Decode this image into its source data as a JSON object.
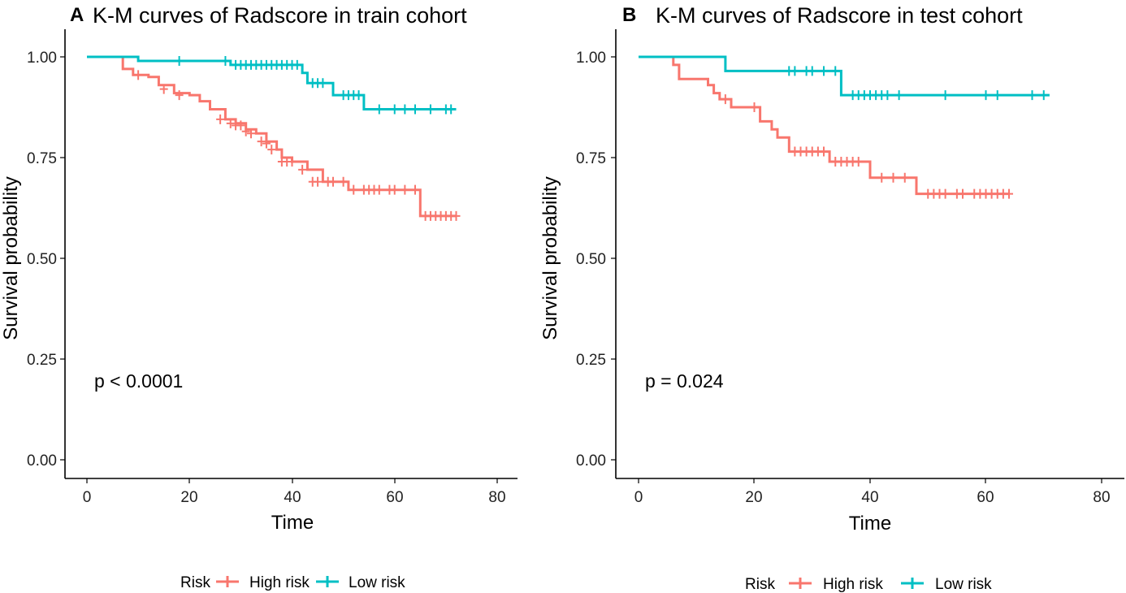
{
  "colors": {
    "high": "#F8766D",
    "low": "#00BFC4"
  },
  "chart_data": [
    {
      "type": "line",
      "panel": "A",
      "title": "K-M curves of Radscore in train cohort",
      "xlabel": "Time",
      "ylabel": "Survival probability",
      "xlim": [
        0,
        80
      ],
      "ylim": [
        0,
        1
      ],
      "xticks": [
        "0",
        "20",
        "40",
        "60",
        "80"
      ],
      "yticks": [
        "0.00",
        "0.25",
        "0.50",
        "0.75",
        "1.00"
      ],
      "p_value_text": "p < 0.0001",
      "legend_title": "Risk",
      "series": [
        {
          "name": "High risk",
          "color_key": "high",
          "steps": [
            [
              0,
              1.0
            ],
            [
              7,
              0.97
            ],
            [
              9,
              0.955
            ],
            [
              12,
              0.95
            ],
            [
              14,
              0.93
            ],
            [
              17,
              0.91
            ],
            [
              20,
              0.905
            ],
            [
              22,
              0.89
            ],
            [
              24,
              0.87
            ],
            [
              27,
              0.845
            ],
            [
              29,
              0.835
            ],
            [
              31,
              0.82
            ],
            [
              33,
              0.81
            ],
            [
              35,
              0.79
            ],
            [
              37,
              0.77
            ],
            [
              38,
              0.75
            ],
            [
              40,
              0.74
            ],
            [
              43,
              0.72
            ],
            [
              46,
              0.69
            ],
            [
              51,
              0.67
            ],
            [
              65,
              0.605
            ],
            [
              72,
              0.605
            ]
          ],
          "censors": [
            [
              10,
              0.955
            ],
            [
              15,
              0.92
            ],
            [
              18,
              0.905
            ],
            [
              26,
              0.845
            ],
            [
              28,
              0.835
            ],
            [
              29,
              0.83
            ],
            [
              30,
              0.83
            ],
            [
              31,
              0.815
            ],
            [
              32,
              0.81
            ],
            [
              34,
              0.79
            ],
            [
              35,
              0.785
            ],
            [
              36,
              0.77
            ],
            [
              38,
              0.74
            ],
            [
              39,
              0.74
            ],
            [
              40,
              0.74
            ],
            [
              42,
              0.72
            ],
            [
              44,
              0.69
            ],
            [
              45,
              0.69
            ],
            [
              47,
              0.69
            ],
            [
              48,
              0.69
            ],
            [
              50,
              0.69
            ],
            [
              52,
              0.67
            ],
            [
              54,
              0.67
            ],
            [
              55,
              0.67
            ],
            [
              56,
              0.67
            ],
            [
              57,
              0.67
            ],
            [
              59,
              0.67
            ],
            [
              60,
              0.67
            ],
            [
              62,
              0.67
            ],
            [
              64,
              0.67
            ],
            [
              66,
              0.605
            ],
            [
              67,
              0.605
            ],
            [
              68,
              0.605
            ],
            [
              69,
              0.605
            ],
            [
              70,
              0.605
            ],
            [
              71,
              0.605
            ],
            [
              72,
              0.605
            ]
          ]
        },
        {
          "name": "Low risk",
          "color_key": "low",
          "steps": [
            [
              0,
              1.0
            ],
            [
              10,
              0.99
            ],
            [
              28,
              0.98
            ],
            [
              42,
              0.96
            ],
            [
              43,
              0.935
            ],
            [
              48,
              0.905
            ],
            [
              54,
              0.87
            ],
            [
              72,
              0.87
            ]
          ],
          "censors": [
            [
              18,
              0.99
            ],
            [
              27,
              0.99
            ],
            [
              29,
              0.98
            ],
            [
              30,
              0.98
            ],
            [
              31,
              0.98
            ],
            [
              32,
              0.98
            ],
            [
              33,
              0.98
            ],
            [
              34,
              0.98
            ],
            [
              35,
              0.98
            ],
            [
              36,
              0.98
            ],
            [
              37,
              0.98
            ],
            [
              38,
              0.98
            ],
            [
              39,
              0.98
            ],
            [
              40,
              0.98
            ],
            [
              41,
              0.98
            ],
            [
              44,
              0.935
            ],
            [
              45,
              0.935
            ],
            [
              46,
              0.935
            ],
            [
              50,
              0.905
            ],
            [
              51,
              0.905
            ],
            [
              52,
              0.905
            ],
            [
              53,
              0.905
            ],
            [
              57,
              0.87
            ],
            [
              60,
              0.87
            ],
            [
              62,
              0.87
            ],
            [
              64,
              0.87
            ],
            [
              67,
              0.87
            ],
            [
              70,
              0.87
            ],
            [
              71,
              0.87
            ]
          ]
        }
      ]
    },
    {
      "type": "line",
      "panel": "B",
      "title": "K-M curves of Radscore in test cohort",
      "xlabel": "Time",
      "ylabel": "Survival probability",
      "xlim": [
        0,
        80
      ],
      "ylim": [
        0,
        1
      ],
      "xticks": [
        "0",
        "20",
        "40",
        "60",
        "80"
      ],
      "yticks": [
        "0.00",
        "0.25",
        "0.50",
        "0.75",
        "1.00"
      ],
      "p_value_text": "p = 0.024",
      "legend_title": "Risk",
      "series": [
        {
          "name": "High risk",
          "color_key": "high",
          "steps": [
            [
              0,
              1.0
            ],
            [
              6,
              0.98
            ],
            [
              7,
              0.945
            ],
            [
              12,
              0.93
            ],
            [
              13,
              0.91
            ],
            [
              14,
              0.895
            ],
            [
              16,
              0.875
            ],
            [
              21,
              0.84
            ],
            [
              23,
              0.82
            ],
            [
              24,
              0.8
            ],
            [
              26,
              0.765
            ],
            [
              33,
              0.74
            ],
            [
              40,
              0.7
            ],
            [
              48,
              0.66
            ],
            [
              64,
              0.66
            ]
          ],
          "censors": [
            [
              15,
              0.895
            ],
            [
              20,
              0.875
            ],
            [
              27,
              0.765
            ],
            [
              28,
              0.765
            ],
            [
              29,
              0.765
            ],
            [
              30,
              0.765
            ],
            [
              31,
              0.765
            ],
            [
              32,
              0.765
            ],
            [
              34,
              0.74
            ],
            [
              35,
              0.74
            ],
            [
              36,
              0.74
            ],
            [
              37,
              0.74
            ],
            [
              38,
              0.74
            ],
            [
              42,
              0.7
            ],
            [
              44,
              0.7
            ],
            [
              46,
              0.7
            ],
            [
              50,
              0.66
            ],
            [
              51,
              0.66
            ],
            [
              52,
              0.66
            ],
            [
              53,
              0.66
            ],
            [
              55,
              0.66
            ],
            [
              56,
              0.66
            ],
            [
              58,
              0.66
            ],
            [
              59,
              0.66
            ],
            [
              60,
              0.66
            ],
            [
              61,
              0.66
            ],
            [
              62,
              0.66
            ],
            [
              63,
              0.66
            ],
            [
              64,
              0.66
            ]
          ]
        },
        {
          "name": "Low risk",
          "color_key": "low",
          "steps": [
            [
              0,
              1.0
            ],
            [
              15,
              0.965
            ],
            [
              35,
              0.905
            ],
            [
              71,
              0.905
            ]
          ],
          "censors": [
            [
              26,
              0.965
            ],
            [
              27,
              0.965
            ],
            [
              29,
              0.965
            ],
            [
              30,
              0.965
            ],
            [
              32,
              0.965
            ],
            [
              34,
              0.965
            ],
            [
              37,
              0.905
            ],
            [
              38,
              0.905
            ],
            [
              39,
              0.905
            ],
            [
              40,
              0.905
            ],
            [
              41,
              0.905
            ],
            [
              42,
              0.905
            ],
            [
              43,
              0.905
            ],
            [
              45,
              0.905
            ],
            [
              53,
              0.905
            ],
            [
              60,
              0.905
            ],
            [
              62,
              0.905
            ],
            [
              68,
              0.905
            ],
            [
              70,
              0.905
            ]
          ]
        }
      ]
    }
  ]
}
